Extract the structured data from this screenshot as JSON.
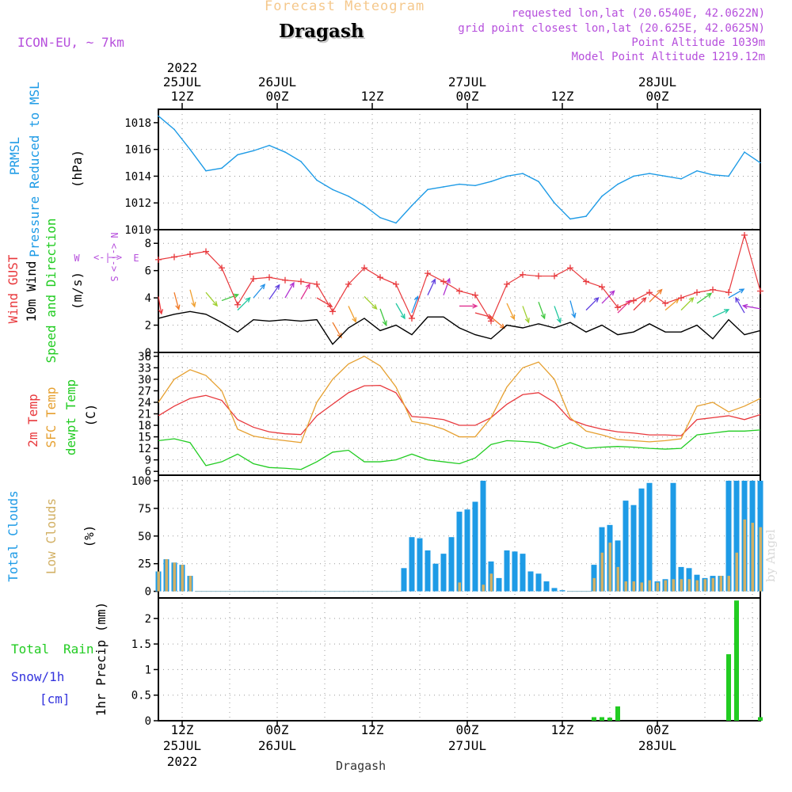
{
  "header": {
    "chart_title": "Forecast Meteogram",
    "location": "Dragash",
    "model": "ICON-EU, ~ 7km",
    "requested": "requested lon,lat (20.6540E, 42.0622N)",
    "grid_point": "grid point closest lon,lat (20.625E, 42.0625N)",
    "point_altitude": "Point Altitude 1039m",
    "model_altitude": "Model Point Altitude 1219.12m",
    "watermark": "by Angel",
    "footer_location": "Dragash"
  },
  "colors": {
    "pressure": "#1e9be6",
    "gust": "#e8383c",
    "wind": "#000000",
    "temp2m": "#e8383c",
    "sfc_temp": "#e6a030",
    "dewpt": "#22cc22",
    "total_clouds": "#1e9be6",
    "low_clouds": "#d2b064",
    "rain": "#22cc22",
    "snow": "#3333dd",
    "title_orange": "#f5c88c",
    "header_purple": "#b64fdc"
  },
  "chart_data": [
    {
      "type": "line",
      "panel": "pressure",
      "y_title": [
        "PRMSL",
        "Pressure Reduced to MSL",
        "(hPa)"
      ],
      "ylim": [
        1010,
        1019
      ],
      "yticks": [
        1010,
        1012,
        1014,
        1016,
        1018
      ],
      "x_hours": [
        0,
        2,
        4,
        6,
        8,
        10,
        12,
        14,
        16,
        18,
        20,
        22,
        24,
        26,
        28,
        30,
        32,
        34,
        36,
        38,
        40,
        42,
        44,
        46,
        48,
        50,
        52,
        54,
        56,
        58,
        60,
        62,
        64,
        66,
        68,
        70,
        72,
        74,
        76
      ],
      "values": [
        1018.5,
        1017.5,
        1016,
        1014.4,
        1014.6,
        1015.6,
        1015.9,
        1016.3,
        1015.8,
        1015.1,
        1013.7,
        1013.0,
        1012.5,
        1011.8,
        1010.9,
        1010.5,
        1011.8,
        1013.0,
        1013.2,
        1013.4,
        1013.3,
        1013.6,
        1014.0,
        1014.2,
        1013.6,
        1012.0,
        1010.8,
        1011.0,
        1012.5,
        1013.4,
        1014.0,
        1014.2,
        1014.0,
        1013.8,
        1014.4,
        1014.1,
        1014.0,
        1015.8,
        1015.0
      ]
    },
    {
      "type": "line",
      "panel": "wind",
      "y_title": [
        "Wind GUST",
        "10m Wind",
        "Speed and Direction",
        "(m/s)"
      ],
      "compass": {
        "n": "N",
        "s": "S",
        "e": "E",
        "w": "W"
      },
      "ylim": [
        0,
        9
      ],
      "yticks": [
        0,
        2,
        4,
        6,
        8
      ],
      "x_hours": [
        0,
        2,
        4,
        6,
        8,
        10,
        12,
        14,
        16,
        18,
        20,
        22,
        24,
        26,
        28,
        30,
        32,
        34,
        36,
        38,
        40,
        42,
        44,
        46,
        48,
        50,
        52,
        54,
        56,
        58,
        60,
        62,
        64,
        66,
        68,
        70,
        72,
        74,
        76
      ],
      "series": [
        {
          "name": "Wind GUST",
          "values": [
            6.8,
            7.0,
            7.2,
            7.4,
            6.2,
            3.5,
            5.4,
            5.5,
            5.3,
            5.2,
            5.0,
            3.0,
            5.0,
            6.2,
            5.5,
            5.0,
            2.5,
            5.8,
            5.2,
            4.5,
            4.2,
            2.3,
            5.0,
            5.7,
            5.6,
            5.6,
            6.2,
            5.2,
            4.8,
            3.3,
            3.8,
            4.4,
            3.6,
            4.0,
            4.4,
            4.6,
            4.4,
            8.6,
            4.5
          ]
        },
        {
          "name": "10m Wind",
          "values": [
            2.5,
            2.8,
            3.0,
            2.8,
            2.2,
            1.5,
            2.4,
            2.3,
            2.4,
            2.3,
            2.4,
            0.6,
            1.8,
            2.5,
            1.6,
            2.0,
            1.3,
            2.6,
            2.6,
            1.8,
            1.3,
            1.0,
            2.0,
            1.8,
            2.1,
            1.8,
            2.2,
            1.5,
            2.0,
            1.3,
            1.5,
            2.1,
            1.5,
            1.5,
            2.0,
            1.0,
            2.4,
            1.3,
            1.6
          ]
        }
      ],
      "wind_direction_from_deg": [
        350,
        345,
        345,
        320,
        250,
        225,
        220,
        215,
        210,
        210,
        300,
        330,
        335,
        315,
        340,
        330,
        200,
        205,
        200,
        270,
        285,
        310,
        335,
        340,
        340,
        340,
        345,
        225,
        225,
        225,
        225,
        225,
        230,
        225,
        235,
        245,
        240,
        150,
        100
      ]
    },
    {
      "type": "line",
      "panel": "temperature",
      "y_title": [
        "2m Temp",
        "SFC Temp",
        "dewpt Temp",
        "(C)"
      ],
      "ylim": [
        5,
        37
      ],
      "yticks": [
        6,
        9,
        12,
        15,
        18,
        21,
        24,
        27,
        30,
        33,
        36
      ],
      "x_hours": [
        0,
        2,
        4,
        6,
        8,
        10,
        12,
        14,
        16,
        18,
        20,
        22,
        24,
        26,
        28,
        30,
        32,
        34,
        36,
        38,
        40,
        42,
        44,
        46,
        48,
        50,
        52,
        54,
        56,
        58,
        60,
        62,
        64,
        66,
        68,
        70,
        72,
        74,
        76
      ],
      "series": [
        {
          "name": "2m Temp",
          "values": [
            20.5,
            23.0,
            25.0,
            25.8,
            24.5,
            19.5,
            17.5,
            16.3,
            15.8,
            15.6,
            20.5,
            23.5,
            26.5,
            28.3,
            28.4,
            26.5,
            20.3,
            20.0,
            19.5,
            18.0,
            18.0,
            20.0,
            23.5,
            26.0,
            26.5,
            24.0,
            19.5,
            18.0,
            17.0,
            16.3,
            16.0,
            15.5,
            15.5,
            15.3,
            19.5,
            20.0,
            20.5,
            19.5,
            20.8
          ]
        },
        {
          "name": "SFC Temp",
          "values": [
            24.0,
            30.0,
            32.5,
            31.0,
            27.0,
            17.0,
            15.2,
            14.5,
            14.0,
            13.5,
            24.0,
            30.0,
            34.0,
            36.0,
            33.5,
            28.0,
            19.0,
            18.3,
            17.0,
            15.0,
            15.0,
            20.0,
            28.0,
            33.0,
            34.5,
            30.0,
            20.0,
            16.5,
            15.5,
            14.3,
            14.0,
            13.7,
            14.0,
            14.5,
            23.0,
            24.0,
            21.5,
            23.0,
            25.0
          ]
        },
        {
          "name": "dewpt Temp",
          "values": [
            14.0,
            14.5,
            13.5,
            7.5,
            8.5,
            10.5,
            8.0,
            7.0,
            6.8,
            6.5,
            8.5,
            11.0,
            11.5,
            8.5,
            8.5,
            9.0,
            10.5,
            9.0,
            8.5,
            8.0,
            9.5,
            13.0,
            14.0,
            13.8,
            13.5,
            12.0,
            13.5,
            12.0,
            12.3,
            12.5,
            12.3,
            12.0,
            11.8,
            12.0,
            15.5,
            16.0,
            16.5,
            16.5,
            16.8
          ]
        }
      ]
    },
    {
      "type": "bar",
      "panel": "clouds",
      "y_title": [
        "Total Clouds",
        "Low Clouds",
        "(%)"
      ],
      "ylim": [
        -6,
        105
      ],
      "yticks": [
        0,
        25,
        50,
        75,
        100
      ],
      "x_hours": [
        0,
        1,
        2,
        3,
        4,
        5,
        6,
        7,
        8,
        9,
        10,
        11,
        12,
        13,
        14,
        15,
        16,
        17,
        18,
        19,
        20,
        21,
        22,
        23,
        24,
        25,
        26,
        27,
        28,
        29,
        30,
        31,
        32,
        33,
        34,
        35,
        36,
        37,
        38,
        39,
        40,
        41,
        42,
        43,
        44,
        45,
        46,
        47,
        48,
        49,
        50,
        51,
        52,
        53,
        54,
        55,
        56,
        57,
        58,
        59,
        60,
        61,
        62,
        63,
        64,
        65,
        66,
        67,
        68,
        69,
        70,
        71,
        72,
        73,
        74,
        75,
        76
      ],
      "series": [
        {
          "name": "Total Clouds",
          "values": [
            18,
            29,
            26,
            24,
            14,
            0,
            0,
            0,
            0,
            0,
            0,
            0,
            0,
            0,
            0,
            0,
            0,
            0,
            0,
            0,
            0,
            0,
            0,
            0,
            0,
            0,
            0,
            0,
            0,
            0,
            0,
            21,
            49,
            48,
            37,
            25,
            34,
            49,
            72,
            74,
            81,
            100,
            27,
            12,
            37,
            36,
            34,
            18,
            16,
            9,
            3,
            1,
            0,
            0,
            0,
            24,
            58,
            60,
            46,
            82,
            78,
            93,
            98,
            9,
            11,
            98,
            22,
            21,
            15,
            12,
            14,
            14,
            100,
            100,
            100,
            100,
            100
          ]
        },
        {
          "name": "Low Clouds",
          "values": [
            18,
            29,
            26,
            24,
            14,
            0,
            0,
            0,
            0,
            0,
            0,
            0,
            0,
            0,
            0,
            0,
            0,
            0,
            0,
            0,
            0,
            0,
            0,
            0,
            0,
            0,
            0,
            0,
            0,
            0,
            0,
            0,
            0,
            0,
            0,
            0,
            0,
            0,
            8,
            0,
            0,
            6,
            16,
            0,
            0,
            0,
            0,
            0,
            0,
            0,
            0,
            0,
            0,
            0,
            0,
            12,
            35,
            44,
            22,
            9,
            9,
            8,
            10,
            8,
            10,
            11,
            11,
            11,
            10,
            11,
            12,
            14,
            14,
            35,
            65,
            62,
            58
          ]
        }
      ]
    },
    {
      "type": "bar",
      "panel": "precip",
      "y_title": [
        "Total Rain",
        "Snow/1h",
        "[cm]",
        "1hr Precip (mm)"
      ],
      "ylim": [
        0,
        2.4
      ],
      "yticks": [
        0,
        0.5,
        1,
        1.5,
        2
      ],
      "x_hours": [
        55,
        56,
        57,
        58,
        72,
        73,
        76
      ],
      "series": [
        {
          "name": "Total Rain",
          "values": [
            0.07,
            0.07,
            0.06,
            0.28,
            1.3,
            2.35,
            0.07
          ]
        }
      ]
    }
  ],
  "time_axis": {
    "ticks": [
      {
        "hour": 3,
        "label": "12Z",
        "date": "25JUL",
        "year": "2022"
      },
      {
        "hour": 15,
        "label": "00Z",
        "date": "26JUL"
      },
      {
        "hour": 27,
        "label": "12Z"
      },
      {
        "hour": 39,
        "label": "00Z",
        "date": "27JUL"
      },
      {
        "hour": 51,
        "label": "12Z"
      },
      {
        "hour": 63,
        "label": "00Z",
        "date": "28JUL"
      }
    ]
  }
}
